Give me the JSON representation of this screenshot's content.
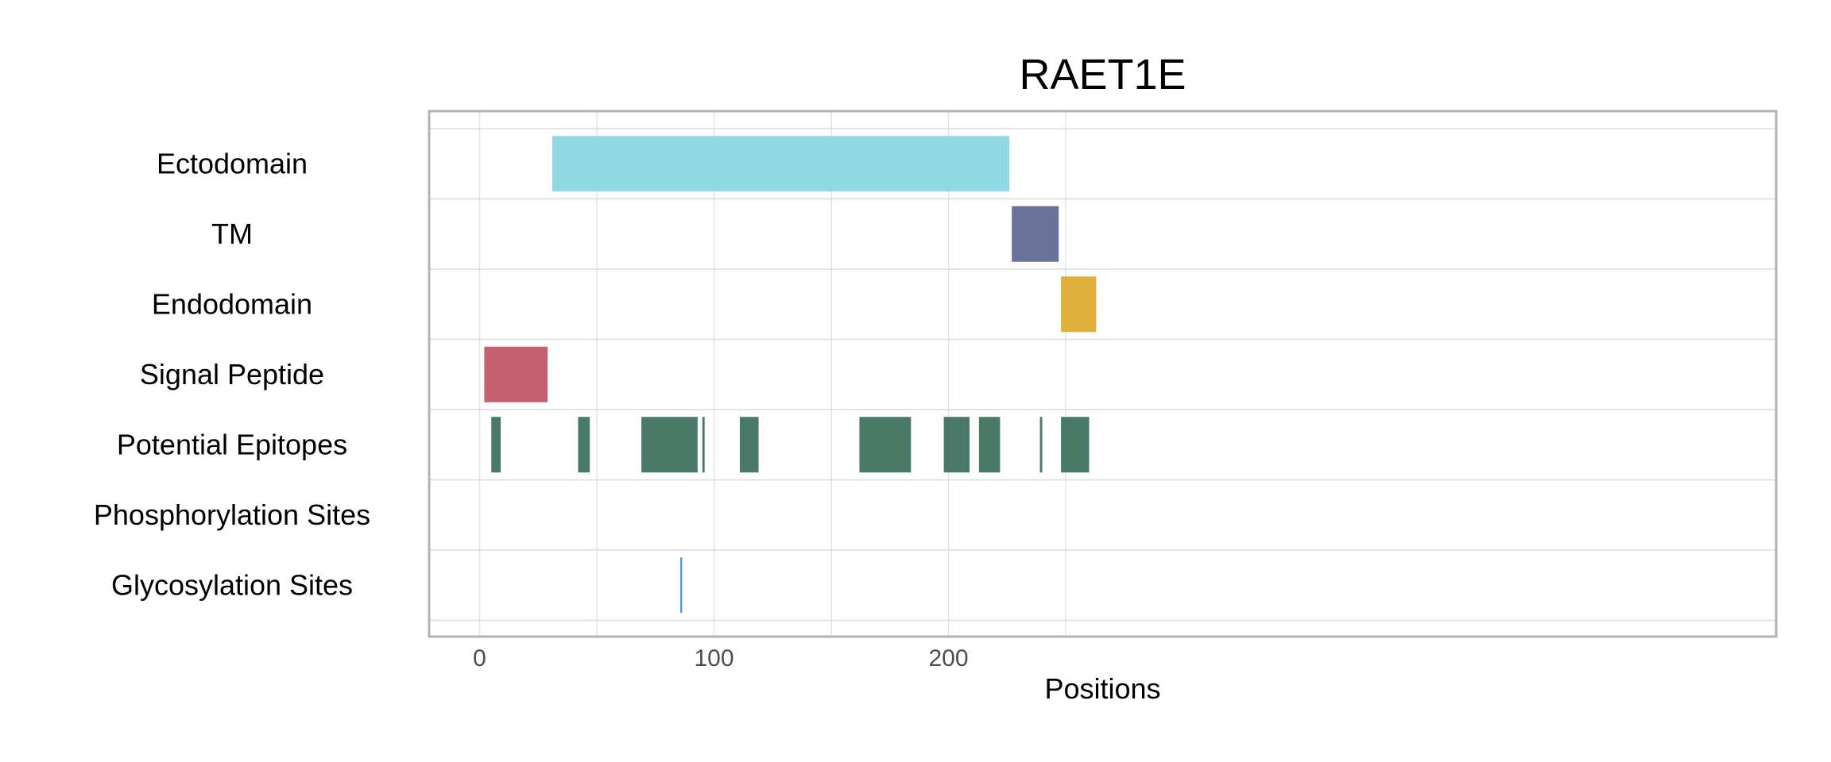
{
  "chart_data": {
    "type": "bar",
    "title": "RAET1E",
    "xlabel": "Positions",
    "ylabel": "",
    "xlim": [
      -11,
      276
    ],
    "x_ticks": [
      0,
      100,
      200
    ],
    "x_tick_labels": [
      "0",
      "100",
      "200"
    ],
    "grid": true,
    "legend": "none",
    "categories": [
      "Ectodomain",
      "TM",
      "Endodomain",
      "Signal Peptide",
      "Potential Epitopes",
      "Phosphorylation Sites",
      "Glycosylation Sites"
    ],
    "series": [
      {
        "category": "Ectodomain",
        "color": "#87D8E1",
        "segments": [
          [
            31,
            226
          ]
        ]
      },
      {
        "category": "TM",
        "color": "#5C6690",
        "segments": [
          [
            227,
            247
          ]
        ]
      },
      {
        "category": "Endodomain",
        "color": "#DEA82A",
        "segments": [
          [
            248,
            263
          ]
        ]
      },
      {
        "category": "Signal Peptide",
        "color": "#C05262",
        "segments": [
          [
            2,
            29
          ]
        ]
      },
      {
        "category": "Potential Epitopes",
        "color": "#3A6E5A",
        "segments": [
          [
            5,
            9
          ],
          [
            42,
            47
          ],
          [
            69,
            93
          ],
          [
            95,
            96
          ],
          [
            111,
            119
          ],
          [
            162,
            184
          ],
          [
            198,
            209
          ],
          [
            213,
            222
          ],
          [
            239,
            240
          ],
          [
            248,
            260
          ]
        ]
      },
      {
        "category": "Phosphorylation Sites",
        "color": "#3A6E5A",
        "segments": []
      },
      {
        "category": "Glycosylation Sites",
        "color": "#3A8FD8",
        "segments": [
          [
            85.6,
            86.4
          ]
        ]
      }
    ]
  }
}
